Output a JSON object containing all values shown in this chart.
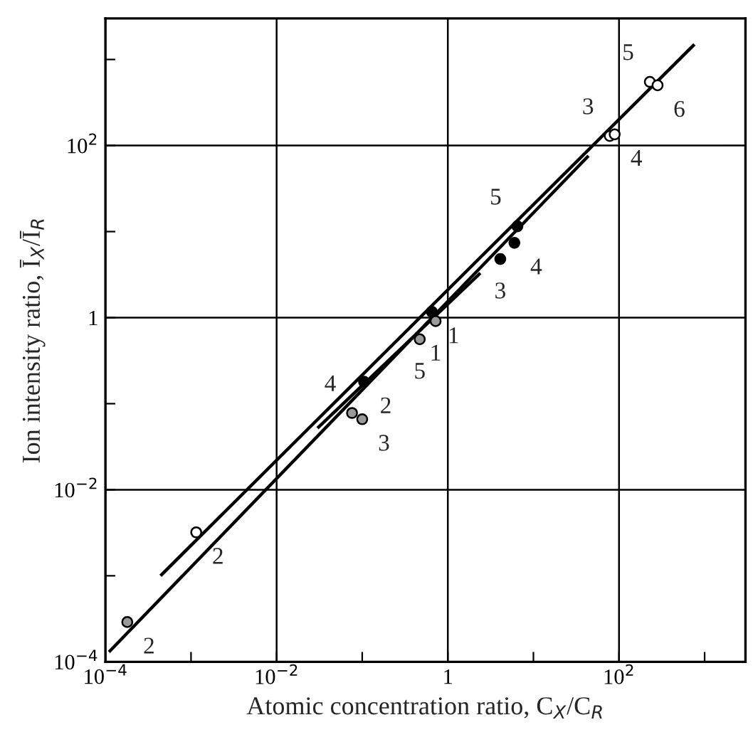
{
  "chart_data": {
    "type": "scatter",
    "xlabel": "Atomic concentration ratio, C$_{X}$/C$_{R}$",
    "ylabel": "Ion intensity ratio, Ī$_{X}$/Ī$_{R}$",
    "log": "xy",
    "grid": true,
    "marker": "circle",
    "xlim": [
      0.0001,
      3000
    ],
    "ylim": [
      0.0001,
      3000
    ],
    "xticks": [
      {
        "value": 0.0001,
        "label": "10$^{−4}$"
      },
      {
        "value": 0.001,
        "label": null
      },
      {
        "value": 0.01,
        "label": "10$^{−2}$"
      },
      {
        "value": 0.1,
        "label": null
      },
      1,
      {
        "value": 10,
        "label": null
      },
      {
        "value": 100,
        "label": "10$^{2}$"
      },
      {
        "value": 1000,
        "label": null
      }
    ],
    "yticks": [
      {
        "value": 0.0001,
        "label": "10$^{−4}$"
      },
      {
        "value": 0.001,
        "label": null
      },
      {
        "value": 0.01,
        "label": "10$^{−2}$"
      },
      {
        "value": 0.1,
        "label": null
      },
      1,
      {
        "value": 10,
        "label": null
      },
      {
        "value": 100,
        "label": "10$^{2}$"
      },
      {
        "value": 1000,
        "label": null
      }
    ],
    "series": [
      {
        "type": "line",
        "marker": "none",
        "color": "#000000",
        "x": [
          0.00044,
          760
        ],
        "values": [
          0.001,
          1500
        ]
      },
      {
        "type": "line",
        "marker": "none",
        "color": "#000000",
        "x": [
          0.00011,
          44
        ],
        "values": [
          0.00013,
          76
        ]
      },
      {
        "type": "line",
        "marker": "none",
        "color": "#000000",
        "x": [
          0.03,
          2.4
        ],
        "values": [
          0.052,
          3.3
        ]
      },
      {
        "color": "#ffffff",
        "x": [
          229,
          282,
          78,
          89,
          0.00115
        ],
        "values": [
          550,
          501,
          129,
          135,
          0.0032
        ]
      },
      {
        "color": "#000000",
        "x": [
          6.5,
          6.0,
          4.1,
          0.65,
          0.105
        ],
        "values": [
          11.5,
          7.4,
          4.8,
          1.17,
          0.18
        ]
      },
      {
        "color": "#9a9a9a",
        "x": [
          0.72,
          0.47,
          0.076,
          0.1,
          0.00018
        ],
        "values": [
          0.91,
          0.56,
          0.078,
          0.066,
          0.00029
        ]
      }
    ],
    "annotations": [
      {
        "text": "5",
        "x": 229,
        "y": 550
      },
      {
        "text": "6",
        "x": 282,
        "y": 501
      },
      {
        "text": "3",
        "x": 78,
        "y": 129
      },
      {
        "text": "4",
        "x": 89,
        "y": 135
      },
      {
        "text": "2",
        "x": 0.00115,
        "y": 0.0032
      },
      {
        "text": "5",
        "x": 6.5,
        "y": 11.5
      },
      {
        "text": "4",
        "x": 6.0,
        "y": 7.4
      },
      {
        "text": "3",
        "x": 4.1,
        "y": 4.8
      },
      {
        "text": "1",
        "x": 0.65,
        "y": 1.17
      },
      {
        "text": "2",
        "x": 0.105,
        "y": 0.18
      },
      {
        "text": "1",
        "x": 0.72,
        "y": 0.91
      },
      {
        "text": "5",
        "x": 0.47,
        "y": 0.56
      },
      {
        "text": "4",
        "x": 0.076,
        "y": 0.078
      },
      {
        "text": "3",
        "x": 0.1,
        "y": 0.066
      },
      {
        "text": "2",
        "x": 0.00018,
        "y": 0.00029
      }
    ]
  }
}
